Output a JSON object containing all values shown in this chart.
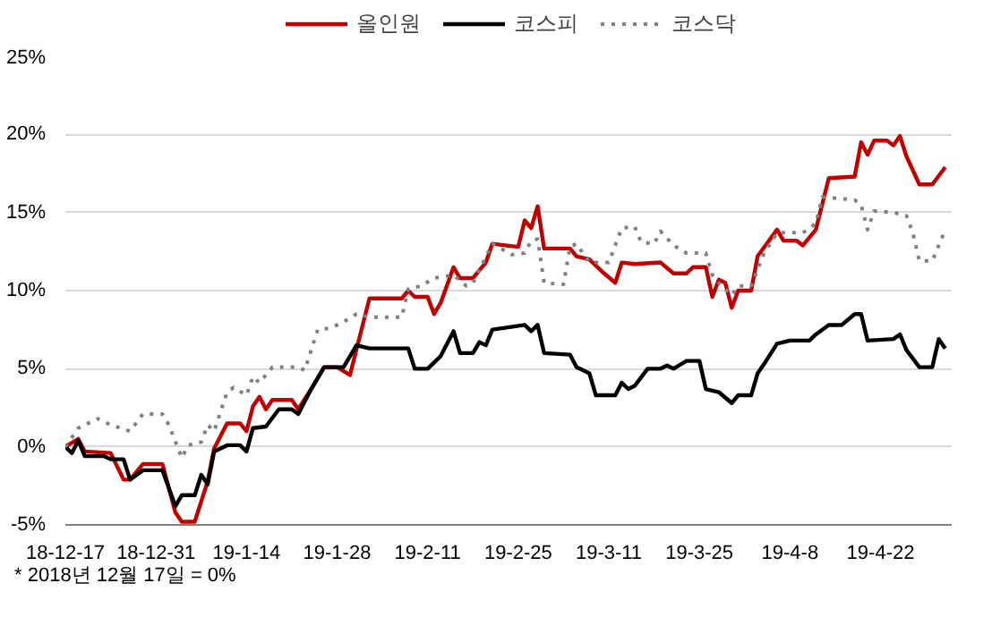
{
  "chart_data": {
    "type": "line",
    "xlim": [
      "2018-12-17",
      "2019-05-03"
    ],
    "xticks": [
      {
        "value": "2018-12-17",
        "label": "18-12-17"
      },
      {
        "value": "2018-12-31",
        "label": "18-12-31"
      },
      {
        "value": "2019-01-14",
        "label": "19-1-14"
      },
      {
        "value": "2019-01-28",
        "label": "19-1-28"
      },
      {
        "value": "2019-02-11",
        "label": "19-2-11"
      },
      {
        "value": "2019-02-25",
        "label": "19-2-25"
      },
      {
        "value": "2019-03-11",
        "label": "19-3-11"
      },
      {
        "value": "2019-03-25",
        "label": "19-3-25"
      },
      {
        "value": "2019-04-08",
        "label": "19-4-8"
      },
      {
        "value": "2019-04-22",
        "label": "19-4-22"
      }
    ],
    "ylim": [
      -5,
      25
    ],
    "yticks": [
      {
        "value": -5,
        "label": "-5%"
      },
      {
        "value": 0,
        "label": "0%"
      },
      {
        "value": 5,
        "label": "5%"
      },
      {
        "value": 10,
        "label": "10%"
      },
      {
        "value": 15,
        "label": "15%"
      },
      {
        "value": 20,
        "label": "20%"
      },
      {
        "value": 25,
        "label": "25%"
      }
    ],
    "grid": "y",
    "legend": "top",
    "marker": "none",
    "annotations": [
      "* 2018년 12월 17일 = 0%"
    ],
    "series": [
      {
        "name": "올인원",
        "color": "#c00000",
        "line_style": "solid",
        "x": [
          "2018-12-17",
          "2018-12-19",
          "2018-12-20",
          "2018-12-24",
          "2018-12-26",
          "2018-12-27",
          "2018-12-29",
          "2019-01-01",
          "2019-01-03",
          "2019-01-04",
          "2019-01-06",
          "2019-01-08",
          "2019-01-09",
          "2019-01-11",
          "2019-01-13",
          "2019-01-14",
          "2019-01-15",
          "2019-01-16",
          "2019-01-17",
          "2019-01-18",
          "2019-01-21",
          "2019-01-22",
          "2019-01-24",
          "2019-01-26",
          "2019-01-28",
          "2019-01-30",
          "2019-02-02",
          "2019-02-07",
          "2019-02-08",
          "2019-02-09",
          "2019-02-11",
          "2019-02-12",
          "2019-02-13",
          "2019-02-15",
          "2019-02-16",
          "2019-02-18",
          "2019-02-20",
          "2019-02-21",
          "2019-02-25",
          "2019-02-26",
          "2019-02-27",
          "2019-02-28",
          "2019-03-01",
          "2019-03-05",
          "2019-03-06",
          "2019-03-08",
          "2019-03-10",
          "2019-03-12",
          "2019-03-13",
          "2019-03-15",
          "2019-03-19",
          "2019-03-21",
          "2019-03-23",
          "2019-03-24",
          "2019-03-26",
          "2019-03-27",
          "2019-03-28",
          "2019-03-29",
          "2019-03-30",
          "2019-03-31",
          "2019-04-02",
          "2019-04-03",
          "2019-04-06",
          "2019-04-07",
          "2019-04-09",
          "2019-04-10",
          "2019-04-12",
          "2019-04-14",
          "2019-04-18",
          "2019-04-19",
          "2019-04-20",
          "2019-04-21",
          "2019-04-23",
          "2019-04-24",
          "2019-04-25",
          "2019-04-26",
          "2019-04-28",
          "2019-04-30",
          "2019-05-02"
        ],
        "values": [
          0,
          0.5,
          -0.3,
          -0.4,
          -2.1,
          -2.1,
          -1.1,
          -1.1,
          -4.2,
          -4.8,
          -4.8,
          -2.2,
          -0.1,
          1.5,
          1.5,
          1.0,
          2.6,
          3.2,
          2.4,
          3.0,
          3.0,
          2.4,
          3.7,
          5.1,
          5.1,
          4.6,
          9.5,
          9.5,
          10,
          9.6,
          9.6,
          8.5,
          9.2,
          11.5,
          10.8,
          10.8,
          11.8,
          13,
          12.8,
          14.5,
          14.0,
          15.4,
          12.7,
          12.7,
          12.2,
          12,
          11.2,
          10.5,
          11.8,
          11.7,
          11.8,
          11.1,
          11.1,
          11.5,
          11.5,
          9.6,
          10.7,
          10.5,
          8.9,
          10,
          10,
          12.2,
          13.9,
          13.2,
          13.2,
          12.9,
          13.9,
          17.2,
          17.3,
          19.5,
          18.7,
          19.6,
          19.6,
          19.3,
          19.9,
          18.6,
          16.8,
          16.8,
          17.9
        ]
      },
      {
        "name": "코스피",
        "color": "#000000",
        "line_style": "solid",
        "x": [
          "2018-12-17",
          "2018-12-18",
          "2018-12-19",
          "2018-12-20",
          "2018-12-23",
          "2018-12-24",
          "2018-12-26",
          "2018-12-27",
          "2018-12-29",
          "2019-01-01",
          "2019-01-03",
          "2019-01-04",
          "2019-01-06",
          "2019-01-07",
          "2019-01-08",
          "2019-01-09",
          "2019-01-11",
          "2019-01-13",
          "2019-01-14",
          "2019-01-15",
          "2019-01-17",
          "2019-01-19",
          "2019-01-21",
          "2019-01-22",
          "2019-01-24",
          "2019-01-26",
          "2019-01-29",
          "2019-01-31",
          "2019-02-02",
          "2019-02-08",
          "2019-02-09",
          "2019-02-11",
          "2019-02-13",
          "2019-02-15",
          "2019-02-16",
          "2019-02-18",
          "2019-02-19",
          "2019-02-20",
          "2019-02-21",
          "2019-02-26",
          "2019-02-27",
          "2019-02-28",
          "2019-03-01",
          "2019-03-05",
          "2019-03-06",
          "2019-03-08",
          "2019-03-09",
          "2019-03-12",
          "2019-03-13",
          "2019-03-14",
          "2019-03-15",
          "2019-03-17",
          "2019-03-19",
          "2019-03-20",
          "2019-03-21",
          "2019-03-23",
          "2019-03-25",
          "2019-03-26",
          "2019-03-28",
          "2019-03-30",
          "2019-03-31",
          "2019-04-02",
          "2019-04-03",
          "2019-04-04",
          "2019-04-06",
          "2019-04-08",
          "2019-04-11",
          "2019-04-12",
          "2019-04-14",
          "2019-04-16",
          "2019-04-18",
          "2019-04-19",
          "2019-04-20",
          "2019-04-24",
          "2019-04-25",
          "2019-04-26",
          "2019-04-28",
          "2019-04-30",
          "2019-05-01",
          "2019-05-02"
        ],
        "values": [
          0,
          -0.4,
          0.4,
          -0.6,
          -0.6,
          -0.8,
          -0.8,
          -2.1,
          -1.5,
          -1.5,
          -3.8,
          -3.1,
          -3.1,
          -1.8,
          -2.4,
          -0.3,
          0.1,
          0.1,
          -0.3,
          1.2,
          1.3,
          2.4,
          2.4,
          2.1,
          3.7,
          5.1,
          5.1,
          6.5,
          6.3,
          6.3,
          5.0,
          5.0,
          5.8,
          7.4,
          6.0,
          6.0,
          6.7,
          6.5,
          7.5,
          7.8,
          7.4,
          7.8,
          6.0,
          5.9,
          5.1,
          4.7,
          3.3,
          3.3,
          4.1,
          3.7,
          3.9,
          5.0,
          5.0,
          5.2,
          5.0,
          5.5,
          5.5,
          3.7,
          3.5,
          2.8,
          3.3,
          3.3,
          4.7,
          5.3,
          6.6,
          6.8,
          6.8,
          7.2,
          7.8,
          7.8,
          8.5,
          8.5,
          6.8,
          6.9,
          7.2,
          6.2,
          5.1,
          5.1,
          6.9,
          6.3
        ]
      },
      {
        "name": "코스닥",
        "color": "#808080",
        "line_style": "dotted",
        "x": [
          "2018-12-17",
          "2018-12-19",
          "2018-12-20",
          "2018-12-22",
          "2018-12-24",
          "2018-12-27",
          "2018-12-29",
          "2019-01-01",
          "2019-01-02",
          "2019-01-04",
          "2019-01-05",
          "2019-01-07",
          "2019-01-08",
          "2019-01-09",
          "2019-01-11",
          "2019-01-12",
          "2019-01-14",
          "2019-01-15",
          "2019-01-16",
          "2019-01-18",
          "2019-01-22",
          "2019-01-23",
          "2019-01-25",
          "2019-01-27",
          "2019-01-29",
          "2019-01-31",
          "2019-02-02",
          "2019-02-07",
          "2019-02-08",
          "2019-02-10",
          "2019-02-12",
          "2019-02-15",
          "2019-02-17",
          "2019-02-18",
          "2019-02-21",
          "2019-02-24",
          "2019-02-26",
          "2019-02-27",
          "2019-02-28",
          "2019-03-01",
          "2019-03-04",
          "2019-03-05",
          "2019-03-06",
          "2019-03-08",
          "2019-03-11",
          "2019-03-13",
          "2019-03-15",
          "2019-03-16",
          "2019-03-18",
          "2019-03-19",
          "2019-03-21",
          "2019-03-23",
          "2019-03-26",
          "2019-03-27",
          "2019-03-28",
          "2019-03-30",
          "2019-03-31",
          "2019-04-02",
          "2019-04-04",
          "2019-04-06",
          "2019-04-10",
          "2019-04-12",
          "2019-04-13",
          "2019-04-18",
          "2019-04-19",
          "2019-04-20",
          "2019-04-21",
          "2019-04-24",
          "2019-04-26",
          "2019-04-27",
          "2019-04-28",
          "2019-04-30",
          "2019-05-02"
        ],
        "values": [
          0,
          1.2,
          1.4,
          1.8,
          1.4,
          1.0,
          2.1,
          2.1,
          1.4,
          -0.7,
          0.1,
          0.3,
          1.4,
          1.0,
          3.5,
          3.8,
          3.3,
          4.5,
          4.1,
          5.1,
          5.1,
          4.9,
          7.5,
          7.6,
          8.0,
          8.5,
          8.3,
          8.3,
          10.1,
          10.3,
          10.8,
          11.0,
          10.3,
          10.5,
          13.0,
          12.3,
          12.4,
          13.2,
          13.3,
          10.5,
          10.4,
          12.8,
          13.0,
          11.8,
          11.8,
          14.0,
          14.1,
          13.1,
          13.0,
          13.8,
          12.9,
          12.4,
          12.4,
          11.0,
          10.5,
          9.7,
          10.3,
          10.3,
          12.4,
          13.7,
          13.7,
          14.3,
          16.0,
          15.8,
          15.5,
          13.9,
          15.1,
          15.0,
          14.8,
          13.7,
          11.9,
          11.9,
          13.9
        ]
      }
    ]
  }
}
